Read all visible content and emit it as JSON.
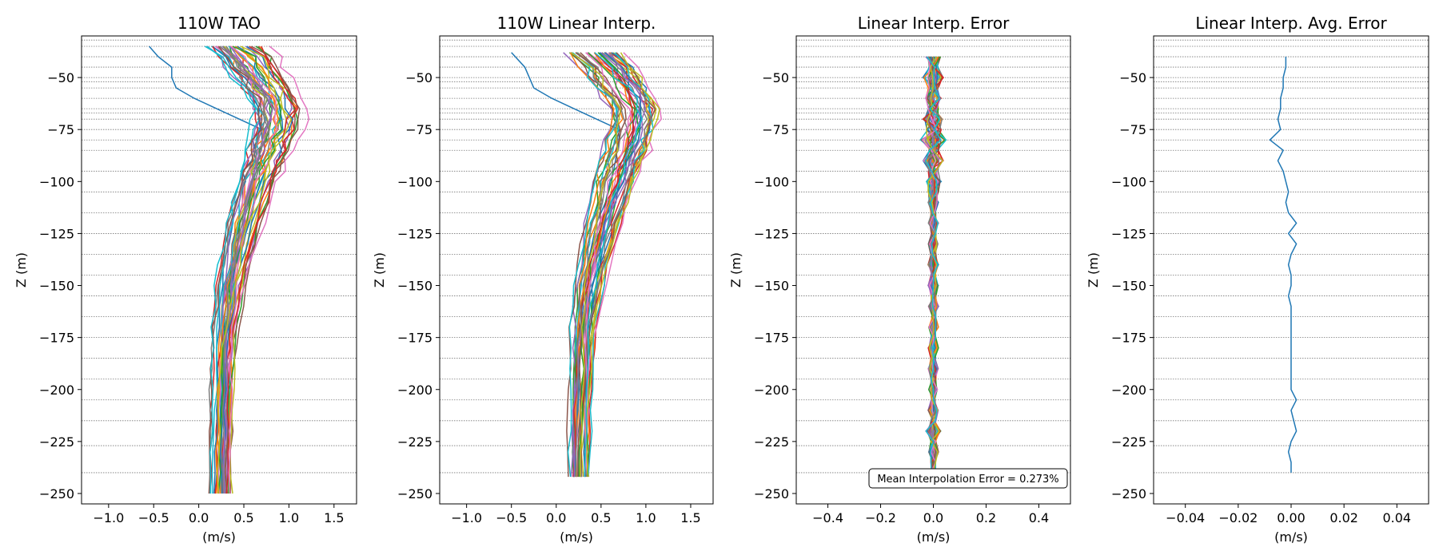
{
  "chart_data": [
    {
      "type": "line",
      "title": "110W TAO",
      "xlabel": "(m/s)",
      "ylabel": "Z (m)",
      "xlim": [
        -1.3,
        1.75
      ],
      "ylim": [
        -255,
        -30
      ],
      "xticks": [
        -1.0,
        -0.5,
        0.0,
        0.5,
        1.0,
        1.5
      ],
      "xtick_labels": [
        "−1.0",
        "−0.5",
        "0.0",
        "0.5",
        "1.0",
        "1.5"
      ],
      "yticks": [
        -250,
        -225,
        -200,
        -175,
        -150,
        -125,
        -100,
        -75,
        -50
      ],
      "ytick_labels": [
        "−250",
        "−225",
        "−200",
        "−175",
        "−150",
        "−125",
        "−100",
        "−75",
        "−50"
      ],
      "depth_lines": [
        -32,
        -35,
        -40,
        -45,
        -50,
        -52,
        -55,
        -60,
        -65,
        -67,
        -70,
        -75,
        -80,
        -85,
        -95,
        -105,
        -115,
        -125,
        -135,
        -145,
        -155,
        -165,
        -175,
        -185,
        -195,
        -205,
        -215,
        -227,
        -240
      ],
      "profile_depths": [
        -35,
        -40,
        -45,
        -50,
        -55,
        -60,
        -65,
        -70,
        -75,
        -80,
        -85,
        -90,
        -95,
        -100,
        -110,
        -120,
        -130,
        -140,
        -150,
        -160,
        -170,
        -180,
        -190,
        -200,
        -210,
        -220,
        -230,
        -240,
        -250
      ],
      "mean_profile": [
        0.4,
        0.55,
        0.62,
        0.7,
        0.78,
        0.85,
        0.88,
        0.88,
        0.86,
        0.82,
        0.78,
        0.74,
        0.7,
        0.66,
        0.6,
        0.53,
        0.47,
        0.42,
        0.37,
        0.34,
        0.31,
        0.29,
        0.28,
        0.27,
        0.26,
        0.26,
        0.25,
        0.25,
        0.25
      ],
      "highlighted_profile_blue": [
        -0.55,
        -0.45,
        -0.3,
        -0.3,
        -0.25,
        -0.05,
        0.2,
        0.45,
        0.7,
        0.7,
        0.68,
        0.66,
        0.64,
        0.6,
        0.55,
        0.45,
        0.4,
        0.35,
        0.3,
        0.3,
        0.28,
        0.26,
        0.25,
        0.25,
        0.24,
        0.24,
        0.22,
        0.2,
        0.18
      ],
      "series_count": 40
    },
    {
      "type": "line",
      "title": "110W Linear Interp.",
      "xlabel": "(m/s)",
      "ylabel": "Z (m)",
      "xlim": [
        -1.3,
        1.75
      ],
      "ylim": [
        -255,
        -30
      ],
      "xticks": [
        -1.0,
        -0.5,
        0.0,
        0.5,
        1.0,
        1.5
      ],
      "xtick_labels": [
        "−1.0",
        "−0.5",
        "0.0",
        "0.5",
        "1.0",
        "1.5"
      ],
      "yticks": [
        -250,
        -225,
        -200,
        -175,
        -150,
        -125,
        -100,
        -75,
        -50
      ],
      "ytick_labels": [
        "−250",
        "−225",
        "−200",
        "−175",
        "−150",
        "−125",
        "−100",
        "−75",
        "−50"
      ],
      "depth_lines": [
        -32,
        -35,
        -40,
        -45,
        -50,
        -52,
        -55,
        -60,
        -65,
        -67,
        -70,
        -75,
        -80,
        -85,
        -95,
        -105,
        -115,
        -125,
        -135,
        -145,
        -155,
        -165,
        -175,
        -185,
        -195,
        -205,
        -215,
        -227,
        -240
      ],
      "profile_depths": [
        -38,
        -45,
        -50,
        -55,
        -60,
        -65,
        -70,
        -75,
        -80,
        -85,
        -90,
        -95,
        -100,
        -110,
        -120,
        -130,
        -140,
        -150,
        -160,
        -170,
        -180,
        -190,
        -200,
        -210,
        -220,
        -230,
        -242
      ],
      "mean_profile": [
        0.42,
        0.58,
        0.66,
        0.74,
        0.82,
        0.87,
        0.88,
        0.86,
        0.82,
        0.78,
        0.74,
        0.7,
        0.66,
        0.6,
        0.53,
        0.47,
        0.42,
        0.37,
        0.34,
        0.31,
        0.29,
        0.28,
        0.27,
        0.26,
        0.26,
        0.25,
        0.25
      ],
      "highlighted_profile_blue": [
        -0.5,
        -0.35,
        -0.3,
        -0.25,
        -0.05,
        0.2,
        0.45,
        0.7,
        0.7,
        0.68,
        0.66,
        0.64,
        0.6,
        0.55,
        0.45,
        0.4,
        0.35,
        0.3,
        0.3,
        0.28,
        0.26,
        0.25,
        0.25,
        0.24,
        0.24,
        0.22,
        0.2
      ],
      "series_count": 40
    },
    {
      "type": "line",
      "title": "Linear Interp. Error",
      "xlabel": "(m/s)",
      "ylabel": "Z (m)",
      "xlim": [
        -0.52,
        0.52
      ],
      "ylim": [
        -255,
        -30
      ],
      "xticks": [
        -0.4,
        -0.2,
        0.0,
        0.2,
        0.4
      ],
      "xtick_labels": [
        "−0.4",
        "−0.2",
        "0.0",
        "0.2",
        "0.4"
      ],
      "yticks": [
        -250,
        -225,
        -200,
        -175,
        -150,
        -125,
        -100,
        -75,
        -50
      ],
      "ytick_labels": [
        "−250",
        "−225",
        "−200",
        "−175",
        "−150",
        "−125",
        "−100",
        "−75",
        "−50"
      ],
      "depth_lines": [
        -32,
        -35,
        -40,
        -45,
        -50,
        -52,
        -55,
        -60,
        -65,
        -67,
        -70,
        -75,
        -80,
        -85,
        -95,
        -105,
        -115,
        -125,
        -135,
        -145,
        -155,
        -165,
        -175,
        -185,
        -195,
        -205,
        -215,
        -227,
        -240
      ],
      "error_depths": [
        -40,
        -45,
        -50,
        -55,
        -60,
        -65,
        -70,
        -75,
        -80,
        -85,
        -90,
        -95,
        -100,
        -105,
        -110,
        -115,
        -120,
        -125,
        -130,
        -135,
        -140,
        -145,
        -150,
        -155,
        -160,
        -165,
        -170,
        -175,
        -180,
        -185,
        -190,
        -195,
        -200,
        -205,
        -210,
        -215,
        -220,
        -225,
        -230,
        -235,
        -240
      ],
      "error_envelope": [
        0.03,
        0.02,
        0.04,
        0.02,
        0.03,
        0.02,
        0.04,
        0.03,
        0.05,
        0.02,
        0.04,
        0.02,
        0.03,
        0.02,
        0.02,
        0.01,
        0.02,
        0.01,
        0.02,
        0.01,
        0.02,
        0.01,
        0.02,
        0.01,
        0.02,
        0.01,
        0.02,
        0.01,
        0.02,
        0.01,
        0.02,
        0.01,
        0.02,
        0.01,
        0.02,
        0.01,
        0.03,
        0.01,
        0.02,
        0.01,
        0.01
      ],
      "annotation": "Mean Interpolation Error = 0.273%",
      "series_count": 40
    },
    {
      "type": "line",
      "title": "Linear Interp. Avg. Error",
      "xlabel": "(m/s)",
      "ylabel": "Z (m)",
      "xlim": [
        -0.052,
        0.052
      ],
      "ylim": [
        -255,
        -30
      ],
      "xticks": [
        -0.04,
        -0.02,
        0.0,
        0.02,
        0.04
      ],
      "xtick_labels": [
        "−0.04",
        "−0.02",
        "0.00",
        "0.02",
        "0.04"
      ],
      "yticks": [
        -250,
        -225,
        -200,
        -175,
        -150,
        -125,
        -100,
        -75,
        -50
      ],
      "ytick_labels": [
        "−250",
        "−225",
        "−200",
        "−175",
        "−150",
        "−125",
        "−100",
        "−75",
        "−50"
      ],
      "depth_lines": [
        -32,
        -35,
        -40,
        -45,
        -50,
        -52,
        -55,
        -60,
        -65,
        -67,
        -70,
        -75,
        -80,
        -85,
        -95,
        -105,
        -115,
        -125,
        -135,
        -145,
        -155,
        -165,
        -175,
        -185,
        -195,
        -205,
        -215,
        -227,
        -240
      ],
      "series": [
        {
          "color": "#1f77b4",
          "depths": [
            -40,
            -45,
            -50,
            -55,
            -60,
            -65,
            -70,
            -75,
            -80,
            -85,
            -90,
            -95,
            -100,
            -105,
            -110,
            -115,
            -120,
            -125,
            -130,
            -135,
            -140,
            -145,
            -150,
            -155,
            -160,
            -165,
            -170,
            -175,
            -180,
            -185,
            -190,
            -195,
            -200,
            -205,
            -210,
            -215,
            -220,
            -225,
            -230,
            -235,
            -240
          ],
          "values": [
            -0.002,
            -0.002,
            -0.003,
            -0.003,
            -0.004,
            -0.004,
            -0.005,
            -0.004,
            -0.008,
            -0.003,
            -0.005,
            -0.003,
            -0.002,
            -0.001,
            -0.002,
            -0.001,
            0.002,
            -0.001,
            0.002,
            0.0,
            -0.001,
            0.0,
            0.0,
            -0.001,
            0.0,
            0.0,
            0.0,
            0.0,
            0.0,
            0.0,
            0.0,
            0.0,
            0.0,
            0.002,
            0.0,
            0.001,
            0.002,
            0.0,
            -0.001,
            0.0,
            0.0
          ]
        }
      ]
    }
  ]
}
